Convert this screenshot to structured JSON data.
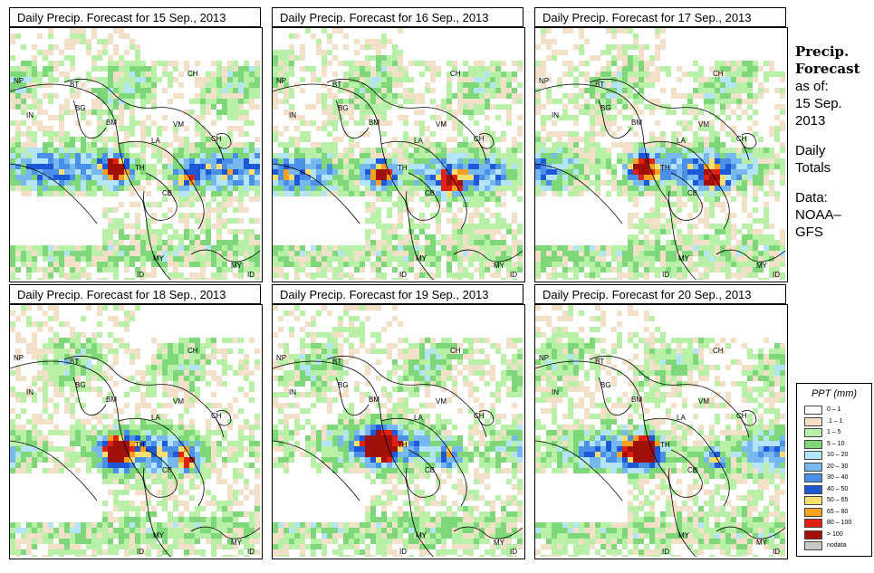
{
  "panels": [
    {
      "title": "Daily Precip. Forecast for  15 Sep., 2013",
      "day": 0
    },
    {
      "title": "Daily Precip. Forecast for  16 Sep., 2013",
      "day": 1
    },
    {
      "title": "Daily Precip. Forecast for  17 Sep., 2013",
      "day": 2
    },
    {
      "title": "Daily Precip. Forecast for  18 Sep., 2013",
      "day": 3
    },
    {
      "title": "Daily Precip. Forecast for  19 Sep., 2013",
      "day": 4
    },
    {
      "title": "Daily Precip. Forecast for  20 Sep., 2013",
      "day": 5
    }
  ],
  "country_labels": [
    "NP",
    "BT",
    "BG",
    "IN",
    "BM",
    "CH",
    "VM",
    "LA",
    "TH",
    "CB",
    "CH",
    "MY",
    "ID",
    "MY",
    "ID"
  ],
  "sidebar": {
    "heading_line1": "Precip.",
    "heading_line2": "Forecast",
    "asof": "as of:",
    "date_line1": "15 Sep.",
    "date_line2": "2013",
    "daily1": "Daily",
    "daily2": "Totals",
    "data1": "Data:",
    "data2": "NOAA–",
    "data3": "GFS"
  },
  "legend": {
    "title": "PPT (mm)",
    "items": [
      {
        "label": "0 – 1",
        "color": "#ffffff"
      },
      {
        "label": ".1 – 1",
        "color": "#f2e0c9"
      },
      {
        "label": "1 – 5",
        "color": "#b8f0a8"
      },
      {
        "label": "5 – 10",
        "color": "#7ed87a"
      },
      {
        "label": "10 – 20",
        "color": "#b4e4f8"
      },
      {
        "label": "20 – 30",
        "color": "#78b8f0"
      },
      {
        "label": "30 – 40",
        "color": "#4a90e8"
      },
      {
        "label": "40 – 50",
        "color": "#1c58d8"
      },
      {
        "label": "50 – 65",
        "color": "#f8e070"
      },
      {
        "label": "65 – 80",
        "color": "#f8a020"
      },
      {
        "label": "80 – 100",
        "color": "#e02010"
      },
      {
        "label": "> 100",
        "color": "#a01008"
      },
      {
        "label": "nodata",
        "color": "#c8c8c8"
      }
    ]
  }
}
